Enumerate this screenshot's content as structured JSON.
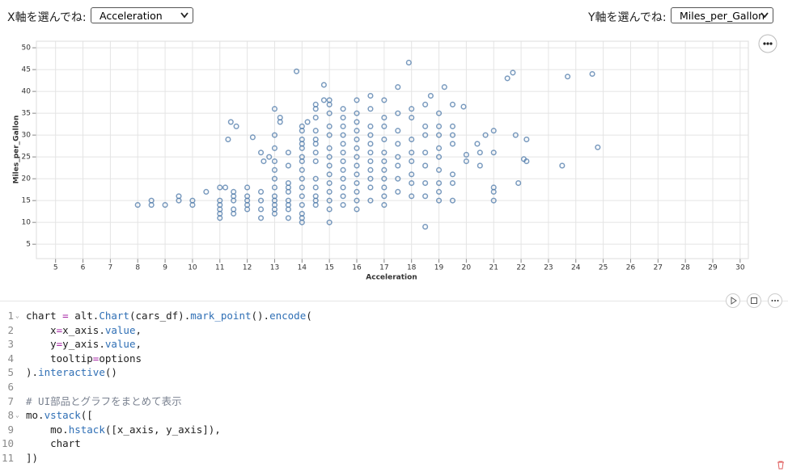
{
  "controls": {
    "x_label": "X軸を選んでね:",
    "x_value": "Acceleration",
    "y_label": "Y軸を選んでね:",
    "y_value": "Miles_per_Gallon"
  },
  "chart_data": {
    "type": "scatter",
    "x_label": "Acceleration",
    "y_label": "Miles_per_Gallon",
    "color": "#4c78a8",
    "grid": true,
    "xlim": [
      4.3,
      30.3
    ],
    "ylim": [
      1.7,
      51.5
    ],
    "xticks": [
      5,
      6,
      7,
      8,
      9,
      10,
      11,
      12,
      13,
      14,
      15,
      16,
      17,
      18,
      19,
      20,
      21,
      22,
      23,
      24,
      25,
      26,
      27,
      28,
      29,
      30
    ],
    "yticks": [
      5,
      10,
      15,
      20,
      25,
      30,
      35,
      40,
      45,
      50
    ],
    "x": [
      8,
      8.5,
      8.5,
      9,
      9.5,
      9.5,
      10,
      10,
      10.5,
      11,
      11,
      11,
      11,
      11,
      11,
      11.2,
      11.5,
      11.5,
      11.5,
      11.5,
      11.5,
      11.3,
      11.4,
      11.6,
      12,
      12,
      12,
      12,
      12,
      12.2,
      12.5,
      12.5,
      12.5,
      12.5,
      12.5,
      12.6,
      12.8,
      13,
      13,
      13,
      13,
      13,
      13,
      13,
      13,
      13,
      13,
      13,
      13,
      13.2,
      13.2,
      13.5,
      13.5,
      13.5,
      13.5,
      13.5,
      13.5,
      13.5,
      13.5,
      13.5,
      13.8,
      14,
      14,
      14,
      14,
      14,
      14,
      14,
      14,
      14,
      14,
      14,
      14,
      14,
      14,
      14,
      14.2,
      14.5,
      14.5,
      14.5,
      14.5,
      14.5,
      14.5,
      14.5,
      14.5,
      14.5,
      14.5,
      14.5,
      14.5,
      14.5,
      14.8,
      14.8,
      15,
      15,
      15,
      15,
      15,
      15,
      15,
      15,
      15,
      15,
      15,
      15,
      15,
      15,
      15.5,
      15.5,
      15.5,
      15.5,
      15.5,
      15.5,
      15.5,
      15.5,
      15.5,
      15.5,
      15.5,
      15.5,
      16,
      16,
      16,
      16,
      16,
      16,
      16,
      16,
      16,
      16,
      16,
      16,
      16,
      16.5,
      16.5,
      16.5,
      16.5,
      16.5,
      16.5,
      16.5,
      16.5,
      16.5,
      16.5,
      16.5,
      17,
      17,
      17,
      17,
      17,
      17,
      17,
      17,
      17,
      17,
      17,
      17.5,
      17.5,
      17.5,
      17.5,
      17.5,
      17.5,
      17.5,
      17.5,
      17.9,
      18,
      18,
      18,
      18,
      18,
      18,
      18,
      18,
      18.5,
      18.5,
      18.5,
      18.5,
      18.5,
      18.5,
      18.5,
      18.5,
      18.7,
      19,
      19,
      19,
      19,
      19,
      19,
      19,
      19,
      19,
      19.2,
      19.5,
      19.5,
      19.5,
      19.5,
      19.5,
      19.5,
      19.5,
      19.9,
      20,
      20,
      20.4,
      20.5,
      20.5,
      20.7,
      21,
      21,
      21,
      21,
      21,
      21.5,
      21.7,
      21.8,
      21.9,
      22.1,
      22.2,
      22.2,
      23.5,
      23.7,
      24.6,
      24.8
    ],
    "y": [
      14,
      14,
      15,
      14,
      15,
      16,
      14,
      15,
      17,
      11,
      12,
      13,
      14,
      15,
      18,
      18,
      12,
      13,
      15,
      16,
      17,
      29,
      33,
      32,
      13,
      14,
      15,
      16,
      18,
      29.5,
      11,
      13,
      15,
      17,
      26,
      24,
      25,
      12,
      13,
      14,
      15,
      16,
      18,
      20,
      22,
      24,
      27,
      30,
      36,
      34,
      33,
      13,
      14,
      15,
      17,
      18,
      19,
      23,
      26,
      11,
      44.6,
      10,
      11,
      12,
      14,
      16,
      18,
      20,
      22,
      24,
      25,
      27,
      28,
      29,
      31,
      32,
      33,
      14,
      15,
      16,
      18,
      20,
      24,
      26,
      28,
      29,
      31,
      34,
      36,
      37,
      38,
      41.5,
      10,
      13,
      15,
      17,
      19,
      21,
      23,
      25,
      27,
      30,
      32,
      35,
      37,
      38,
      14,
      16,
      18,
      20,
      22,
      24,
      26,
      28,
      30,
      32,
      34,
      36,
      13,
      15,
      17,
      19,
      21,
      23,
      25,
      27,
      29,
      31,
      33,
      35,
      38,
      15,
      18,
      20,
      22,
      24,
      26,
      28,
      30,
      32,
      36,
      39,
      14,
      16,
      18,
      20,
      22,
      24,
      26,
      29,
      32,
      34,
      38,
      17,
      20,
      23,
      25,
      28,
      31,
      35,
      41,
      46.6,
      16,
      19,
      21,
      24,
      26,
      29,
      34,
      36,
      9,
      16,
      19,
      23,
      26,
      30,
      32,
      37,
      39,
      15,
      17,
      19,
      22,
      25,
      27,
      30,
      32,
      35,
      41,
      15,
      19,
      21,
      28,
      30,
      32,
      37,
      36.5,
      24,
      25.5,
      28,
      23,
      26,
      30,
      15,
      17,
      18,
      26,
      31,
      43,
      44.3,
      30,
      19,
      24.5,
      29,
      24,
      23,
      43.4,
      44,
      27.2
    ]
  },
  "code": {
    "line_numbers": [
      1,
      2,
      3,
      4,
      5,
      6,
      7,
      8,
      9,
      10,
      11
    ],
    "lines": [
      [
        {
          "text": "chart ",
          "color": "#1f1f1f"
        },
        {
          "text": "=",
          "color": "#a626a4"
        },
        {
          "text": " alt.",
          "color": "#1f1f1f"
        },
        {
          "text": "Chart",
          "color": "#2f6fb5"
        },
        {
          "text": "(cars_df).",
          "color": "#1f1f1f"
        },
        {
          "text": "mark_point",
          "color": "#2f6fb5"
        },
        {
          "text": "().",
          "color": "#1f1f1f"
        },
        {
          "text": "encode",
          "color": "#2f6fb5"
        },
        {
          "text": "(",
          "color": "#1f1f1f"
        }
      ],
      [
        {
          "text": "    x",
          "color": "#1f1f1f"
        },
        {
          "text": "=",
          "color": "#a626a4"
        },
        {
          "text": "x_axis.",
          "color": "#1f1f1f"
        },
        {
          "text": "value",
          "color": "#2f6fb5"
        },
        {
          "text": ",",
          "color": "#1f1f1f"
        }
      ],
      [
        {
          "text": "    y",
          "color": "#1f1f1f"
        },
        {
          "text": "=",
          "color": "#a626a4"
        },
        {
          "text": "y_axis.",
          "color": "#1f1f1f"
        },
        {
          "text": "value",
          "color": "#2f6fb5"
        },
        {
          "text": ",",
          "color": "#1f1f1f"
        }
      ],
      [
        {
          "text": "    tooltip",
          "color": "#1f1f1f"
        },
        {
          "text": "=",
          "color": "#a626a4"
        },
        {
          "text": "options",
          "color": "#1f1f1f"
        }
      ],
      [
        {
          "text": ").",
          "color": "#1f1f1f"
        },
        {
          "text": "interactive",
          "color": "#2f6fb5"
        },
        {
          "text": "()",
          "color": "#1f1f1f"
        }
      ],
      [],
      [
        {
          "text": "# UI部品とグラフをまとめて表示",
          "color": "#7a8290"
        }
      ],
      [
        {
          "text": "mo.",
          "color": "#1f1f1f"
        },
        {
          "text": "vstack",
          "color": "#2f6fb5"
        },
        {
          "text": "([",
          "color": "#1f1f1f"
        }
      ],
      [
        {
          "text": "    mo.",
          "color": "#1f1f1f"
        },
        {
          "text": "hstack",
          "color": "#2f6fb5"
        },
        {
          "text": "([x_axis, y_axis]),",
          "color": "#1f1f1f"
        }
      ],
      [
        {
          "text": "    chart",
          "color": "#1f1f1f"
        }
      ],
      [
        {
          "text": "])",
          "color": "#1f1f1f"
        }
      ]
    ]
  }
}
